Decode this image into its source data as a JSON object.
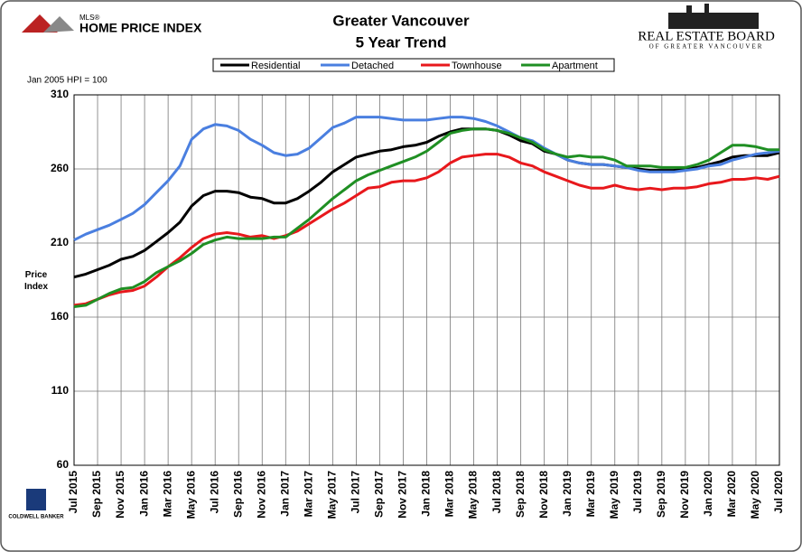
{
  "branding": {
    "left_logo_small": "MLS®",
    "left_logo": "HOME PRICE INDEX",
    "right_logo": "REAL ESTATE BOARD",
    "right_logo_sub": "OF GREATER VANCOUVER",
    "bottom_logo": "COLDWELL BANKER"
  },
  "chart_data": {
    "type": "line",
    "title": "Greater Vancouver",
    "subtitle": "5 Year Trend",
    "note": "Jan 2005 HPI = 100",
    "y_label": "Price Index",
    "legend": "top",
    "grid": true,
    "categories": [
      "Jul 2015",
      null,
      "Sep 2015",
      null,
      "Nov 2015",
      null,
      "Jan 2016",
      null,
      "Mar 2016",
      null,
      "May 2016",
      null,
      "Jul 2016",
      null,
      "Sep 2016",
      null,
      "Nov 2016",
      null,
      "Jan 2017",
      null,
      "Mar 2017",
      null,
      "May 2017",
      null,
      "Jul 2017",
      null,
      "Sep 2017",
      null,
      "Nov 2017",
      null,
      "Jan 2018",
      null,
      "Mar 2018",
      null,
      "May 2018",
      null,
      "Jul 2018",
      null,
      "Sep 2018",
      null,
      "Nov 2018",
      null,
      "Jan 2019",
      null,
      "Mar 2019",
      null,
      "May 2019",
      null,
      "Jul 2019",
      null,
      "Sep 2019",
      null,
      "Nov 2019",
      null,
      "Jan 2020",
      null,
      "Mar 2020",
      null,
      "May 2020",
      null,
      "Jul 2020"
    ],
    "ylim": [
      60,
      310
    ],
    "yticks": [
      60,
      110,
      160,
      210,
      260,
      310
    ],
    "series": [
      {
        "name": "Residential",
        "color": "#000000",
        "values": [
          187,
          189,
          192,
          195,
          199,
          201,
          205,
          211,
          217,
          224,
          235,
          242,
          245,
          245,
          244,
          241,
          240,
          237,
          237,
          240,
          245,
          251,
          258,
          263,
          268,
          270,
          272,
          273,
          275,
          276,
          278,
          282,
          285,
          287,
          287,
          287,
          286,
          283,
          279,
          277,
          272,
          270,
          266,
          264,
          263,
          263,
          262,
          261,
          260,
          259,
          259,
          259,
          260,
          261,
          263,
          265,
          268,
          269,
          269,
          269,
          271
        ]
      },
      {
        "name": "Detached",
        "color": "#4a7fe0",
        "values": [
          212,
          216,
          219,
          222,
          226,
          230,
          236,
          244,
          252,
          262,
          280,
          287,
          290,
          289,
          286,
          280,
          276,
          271,
          269,
          270,
          274,
          281,
          288,
          291,
          295,
          295,
          295,
          294,
          293,
          293,
          293,
          294,
          295,
          295,
          294,
          292,
          289,
          285,
          281,
          279,
          274,
          270,
          266,
          264,
          263,
          263,
          262,
          261,
          259,
          258,
          258,
          258,
          259,
          260,
          262,
          263,
          266,
          268,
          270,
          271,
          272
        ]
      },
      {
        "name": "Townhouse",
        "color": "#e8181c",
        "values": [
          168,
          169,
          172,
          175,
          177,
          178,
          181,
          187,
          194,
          200,
          207,
          213,
          216,
          217,
          216,
          214,
          215,
          213,
          215,
          218,
          223,
          228,
          233,
          237,
          242,
          247,
          248,
          251,
          252,
          252,
          254,
          258,
          264,
          268,
          269,
          270,
          270,
          268,
          264,
          262,
          258,
          255,
          252,
          249,
          247,
          247,
          249,
          247,
          246,
          247,
          246,
          247,
          247,
          248,
          250,
          251,
          253,
          253,
          254,
          253,
          255
        ]
      },
      {
        "name": "Apartment",
        "color": "#1f8f23",
        "values": [
          167,
          168,
          172,
          176,
          179,
          180,
          184,
          190,
          194,
          198,
          203,
          209,
          212,
          214,
          213,
          213,
          213,
          214,
          214,
          220,
          226,
          233,
          240,
          246,
          252,
          256,
          259,
          262,
          265,
          268,
          272,
          278,
          284,
          286,
          287,
          287,
          286,
          284,
          281,
          278,
          273,
          270,
          268,
          269,
          268,
          268,
          266,
          262,
          262,
          262,
          261,
          261,
          261,
          263,
          266,
          271,
          276,
          276,
          275,
          273,
          273
        ]
      }
    ]
  }
}
